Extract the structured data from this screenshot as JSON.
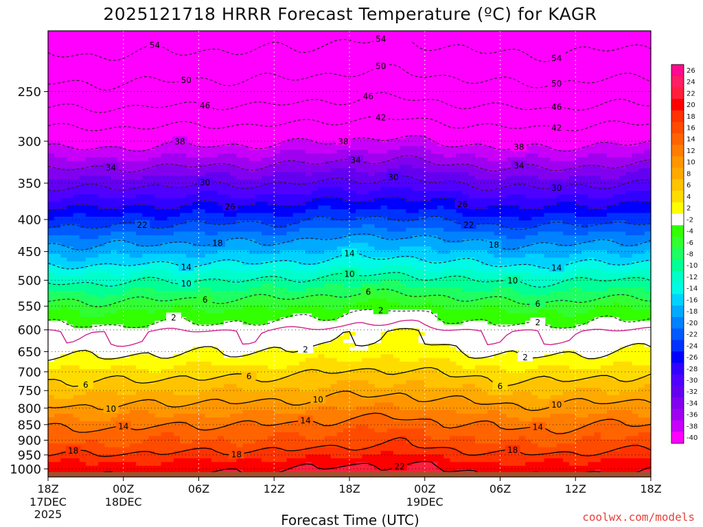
{
  "chart_data": {
    "type": "heatmap",
    "title": "2025121718 HRRR Forecast Temperature (ºC) for KAGR",
    "xlabel": "Forecast Time (UTC)",
    "ylabel": "",
    "units": "ºC",
    "x_range_hours": [
      0,
      48
    ],
    "y_range_hPa": [
      200,
      1030
    ],
    "y_scale": "log",
    "y_ticks": [
      250,
      300,
      350,
      400,
      450,
      500,
      550,
      600,
      650,
      700,
      750,
      800,
      850,
      900,
      950,
      1000
    ],
    "x_ticks": [
      {
        "hour": 0,
        "label": "18Z",
        "date": "17DEC",
        "year": "2025"
      },
      {
        "hour": 6,
        "label": "00Z",
        "date": "18DEC",
        "year": ""
      },
      {
        "hour": 12,
        "label": "06Z",
        "date": "",
        "year": ""
      },
      {
        "hour": 18,
        "label": "12Z",
        "date": "",
        "year": ""
      },
      {
        "hour": 24,
        "label": "18Z",
        "date": "",
        "year": ""
      },
      {
        "hour": 30,
        "label": "00Z",
        "date": "19DEC",
        "year": ""
      },
      {
        "hour": 36,
        "label": "06Z",
        "date": "",
        "year": ""
      },
      {
        "hour": 42,
        "label": "12Z",
        "date": "",
        "year": ""
      },
      {
        "hour": 48,
        "label": "18Z",
        "date": "",
        "year": ""
      }
    ],
    "temperature_profile": {
      "pressure_hPa": [
        205,
        230,
        260,
        295,
        325,
        355,
        395,
        430,
        465,
        495,
        530,
        560,
        590,
        605,
        625,
        640,
        660,
        705,
        740,
        790,
        840,
        880,
        910,
        945,
        975,
        1000,
        1030
      ],
      "temp_C": [
        -56,
        -52,
        -47,
        -40,
        -35,
        -30,
        -24,
        -19,
        -15,
        -11,
        -7,
        -4,
        -2,
        0,
        0,
        1,
        2,
        5,
        7,
        10,
        13,
        15,
        16,
        18,
        20,
        21,
        22
      ]
    },
    "temperature_offsets_C": {
      "hours": [
        0,
        4,
        8,
        12,
        16,
        20,
        24,
        28,
        32,
        36,
        40,
        44,
        48
      ],
      "offset": [
        0,
        -0.3,
        0.2,
        0.4,
        0.4,
        0.8,
        1.5,
        1.8,
        0.8,
        0.0,
        -0.2,
        0.5,
        0.8
      ]
    },
    "surface_color": "#a0522d",
    "colorbar": {
      "levels": [
        26,
        24,
        22,
        20,
        18,
        16,
        14,
        12,
        10,
        8,
        6,
        4,
        2,
        -2,
        -4,
        -6,
        -8,
        -10,
        -12,
        -14,
        -16,
        -18,
        -20,
        -22,
        -24,
        -26,
        -28,
        -30,
        -32,
        -34,
        -36,
        -38,
        -40
      ],
      "colors": [
        "#ff0a8c",
        "#ff1e64",
        "#ff1e3c",
        "#ff0000",
        "#ff3200",
        "#ff4b00",
        "#ff6400",
        "#ff7d00",
        "#ff9600",
        "#ffaa00",
        "#ffc300",
        "#ffdc00",
        "#ffff00",
        "#ffffff",
        "#32ff00",
        "#32ff32",
        "#1eff64",
        "#00ff96",
        "#00ffc8",
        "#00fae6",
        "#00d2ff",
        "#00aaff",
        "#0082ff",
        "#005aff",
        "#0032ff",
        "#0000ff",
        "#3200ff",
        "#5000ff",
        "#6400f0",
        "#8200f0",
        "#a000f0",
        "#c800fa",
        "#ff00ff"
      ]
    },
    "contours": {
      "dashed_levels": [
        -54,
        -50,
        -46,
        -42,
        -38,
        -34,
        -30,
        -26,
        -22,
        -18,
        -14,
        -10,
        -6,
        -2
      ],
      "solid_levels": [
        2,
        6,
        10,
        14,
        18,
        22
      ],
      "freezing_level": 0,
      "freezing_color": "#d0208a",
      "labels": [
        {
          "value": "54",
          "hour": 8.5,
          "level": -54
        },
        {
          "value": "54",
          "hour": 26.5,
          "level": -54
        },
        {
          "value": "54",
          "hour": 40.5,
          "level": -54
        },
        {
          "value": "50",
          "hour": 11.0,
          "level": -50
        },
        {
          "value": "50",
          "hour": 26.5,
          "level": -50
        },
        {
          "value": "50",
          "hour": 40.5,
          "level": -50
        },
        {
          "value": "46",
          "hour": 12.5,
          "level": -46
        },
        {
          "value": "46",
          "hour": 25.5,
          "level": -46
        },
        {
          "value": "46",
          "hour": 40.5,
          "level": -46
        },
        {
          "value": "42",
          "hour": 26.5,
          "level": -42
        },
        {
          "value": "42",
          "hour": 40.5,
          "level": -42
        },
        {
          "value": "38",
          "hour": 10.5,
          "level": -38
        },
        {
          "value": "38",
          "hour": 23.5,
          "level": -38
        },
        {
          "value": "38",
          "hour": 37.5,
          "level": -38
        },
        {
          "value": "34",
          "hour": 5.0,
          "level": -34
        },
        {
          "value": "34",
          "hour": 24.5,
          "level": -34
        },
        {
          "value": "34",
          "hour": 37.5,
          "level": -34
        },
        {
          "value": "30",
          "hour": 12.5,
          "level": -30
        },
        {
          "value": "30",
          "hour": 27.5,
          "level": -30
        },
        {
          "value": "30",
          "hour": 40.5,
          "level": -30
        },
        {
          "value": "26",
          "hour": 14.5,
          "level": -26
        },
        {
          "value": "26",
          "hour": 33.0,
          "level": -26
        },
        {
          "value": "22",
          "hour": 7.5,
          "level": -22
        },
        {
          "value": "22",
          "hour": 33.5,
          "level": -22
        },
        {
          "value": "18",
          "hour": 13.5,
          "level": -18
        },
        {
          "value": "18",
          "hour": 35.5,
          "level": -18
        },
        {
          "value": "14",
          "hour": 11.0,
          "level": -14
        },
        {
          "value": "14",
          "hour": 24.0,
          "level": -14
        },
        {
          "value": "14",
          "hour": 40.5,
          "level": -14
        },
        {
          "value": "10",
          "hour": 11.0,
          "level": -10
        },
        {
          "value": "10",
          "hour": 24.0,
          "level": -10
        },
        {
          "value": "10",
          "hour": 37.0,
          "level": -10
        },
        {
          "value": "6",
          "hour": 12.5,
          "level": -6
        },
        {
          "value": "6",
          "hour": 25.5,
          "level": -6
        },
        {
          "value": "6",
          "hour": 39.0,
          "level": -6
        },
        {
          "value": "2",
          "hour": 10.0,
          "level": -2
        },
        {
          "value": "2",
          "hour": 26.5,
          "level": -2
        },
        {
          "value": "2",
          "hour": 39.0,
          "level": -2
        },
        {
          "value": "2",
          "hour": 20.5,
          "level": 2
        },
        {
          "value": "2",
          "hour": 38.0,
          "level": 2
        },
        {
          "value": "6",
          "hour": 3.0,
          "level": 6
        },
        {
          "value": "6",
          "hour": 16.0,
          "level": 6
        },
        {
          "value": "6",
          "hour": 36.0,
          "level": 6
        },
        {
          "value": "10",
          "hour": 5.0,
          "level": 10
        },
        {
          "value": "10",
          "hour": 21.5,
          "level": 10
        },
        {
          "value": "10",
          "hour": 40.5,
          "level": 10
        },
        {
          "value": "14",
          "hour": 6.0,
          "level": 14
        },
        {
          "value": "14",
          "hour": 20.5,
          "level": 14
        },
        {
          "value": "14",
          "hour": 39.0,
          "level": 14
        },
        {
          "value": "18",
          "hour": 2.0,
          "level": 18
        },
        {
          "value": "18",
          "hour": 15.0,
          "level": 18
        },
        {
          "value": "18",
          "hour": 37.0,
          "level": 18
        },
        {
          "value": "22",
          "hour": 28.0,
          "level": 22
        }
      ]
    }
  },
  "credit": "coolwx.com/models"
}
